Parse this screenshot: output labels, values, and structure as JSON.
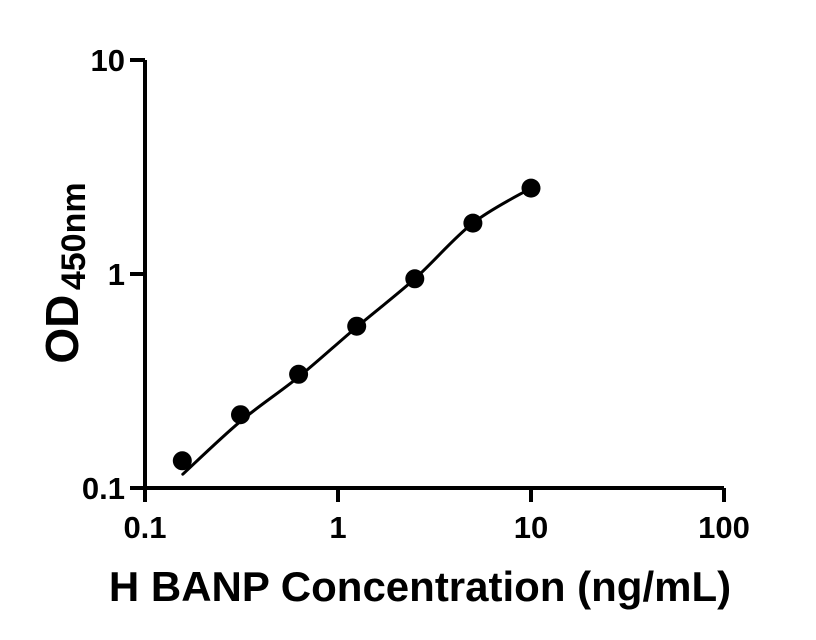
{
  "figure": {
    "background": "#ffffff",
    "ink": "#000000"
  },
  "chart_data": {
    "type": "scatter",
    "title": "",
    "xlabel": "H BANP Concentration (ng/mL)",
    "ylabel_main": "OD",
    "ylabel_sub": "450nm",
    "x_scale": "log",
    "y_scale": "log",
    "xlim": [
      0.1,
      100
    ],
    "ylim": [
      0.1,
      10
    ],
    "x_ticks": [
      {
        "value": 0.1,
        "label": "0.1"
      },
      {
        "value": 1,
        "label": "1"
      },
      {
        "value": 10,
        "label": "10"
      },
      {
        "value": 100,
        "label": "100"
      }
    ],
    "y_ticks": [
      {
        "value": 0.1,
        "label": "0.1"
      },
      {
        "value": 1,
        "label": "1"
      },
      {
        "value": 10,
        "label": "10"
      }
    ],
    "grid": false,
    "legend": "none",
    "points": [
      {
        "x": 0.156,
        "y": 0.134
      },
      {
        "x": 0.3125,
        "y": 0.22
      },
      {
        "x": 0.625,
        "y": 0.34
      },
      {
        "x": 1.25,
        "y": 0.57
      },
      {
        "x": 2.5,
        "y": 0.95
      },
      {
        "x": 5,
        "y": 1.73
      },
      {
        "x": 10,
        "y": 2.52
      }
    ],
    "fit_curve": [
      {
        "x": 0.157,
        "y": 0.116
      },
      {
        "x": 0.3125,
        "y": 0.205
      },
      {
        "x": 0.625,
        "y": 0.33
      },
      {
        "x": 1.25,
        "y": 0.565
      },
      {
        "x": 2.5,
        "y": 0.95
      },
      {
        "x": 5,
        "y": 1.73
      },
      {
        "x": 10,
        "y": 2.52
      }
    ],
    "marker": {
      "shape": "circle",
      "radius": 9.5,
      "color": "#000000"
    },
    "line": {
      "width": 3,
      "color": "#000000"
    },
    "axis": {
      "width": 4,
      "tick_length": 14,
      "color": "#000000"
    }
  }
}
